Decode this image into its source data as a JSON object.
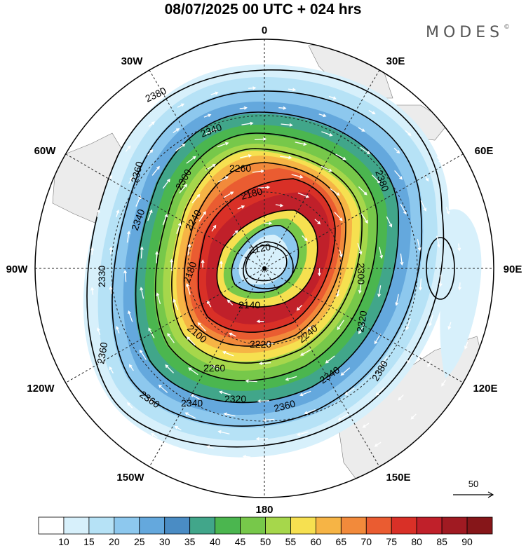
{
  "title": "08/07/2025  00 UTC  + 024 hrs",
  "brand": {
    "name": "MODES",
    "mark": "©"
  },
  "longitude_labels": {
    "top": "0",
    "bottom": "180",
    "upper_left": "30W",
    "upper_right": "30E",
    "left_upper": "60W",
    "right_upper": "60E",
    "left": "90W",
    "right": "90E",
    "left_lower": "120W",
    "right_lower": "120E",
    "lower_left": "150W",
    "lower_right": "150E"
  },
  "contour_labels": [
    "2380",
    "2340",
    "2360",
    "2300",
    "2260",
    "2340",
    "2240",
    "2180",
    "2120",
    "2380",
    "2330",
    "2180",
    "2140",
    "2100",
    "2220",
    "2240",
    "2260",
    "2320",
    "2340",
    "2360",
    "2360",
    "2340",
    "2380",
    "2320",
    "2360",
    "2300"
  ],
  "reference_vector": {
    "label": "50"
  },
  "colorbar": {
    "colors": [
      "#ffffff",
      "#d7f0fb",
      "#b6e2f6",
      "#8dc8ee",
      "#64a8dd",
      "#4a8cc4",
      "#41a68a",
      "#4bb64f",
      "#77c84a",
      "#a6d74b",
      "#f6e050",
      "#f6b445",
      "#f28a3b",
      "#ea5c31",
      "#d93027",
      "#c0202a",
      "#a01a22",
      "#861619"
    ],
    "tick_labels": [
      "10",
      "15",
      "20",
      "25",
      "30",
      "35",
      "40",
      "45",
      "50",
      "55",
      "60",
      "65",
      "70",
      "75",
      "80",
      "85",
      "90"
    ]
  },
  "accent": {
    "wind_max": "#c0202a",
    "land": "#ececec",
    "contour": "#000000"
  }
}
